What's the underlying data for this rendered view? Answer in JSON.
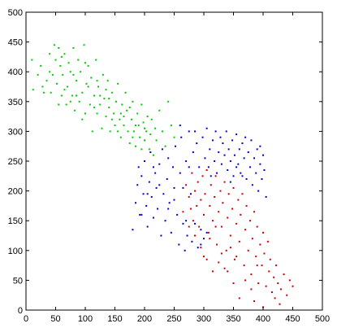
{
  "chart_data": {
    "type": "scatter",
    "title": "",
    "xlabel": "",
    "ylabel": "",
    "xlim": [
      0,
      500
    ],
    "ylim": [
      0,
      500
    ],
    "xticks": [
      0,
      50,
      100,
      150,
      200,
      250,
      300,
      350,
      400,
      450,
      500
    ],
    "yticks": [
      0,
      50,
      100,
      150,
      200,
      250,
      300,
      350,
      400,
      450,
      500
    ],
    "xtick_labels": [
      "0",
      "50",
      "100",
      "150",
      "200",
      "250",
      "300",
      "350",
      "400",
      "450",
      "500"
    ],
    "ytick_labels": [
      "0",
      "50",
      "100",
      "150",
      "200",
      "250",
      "300",
      "350",
      "400",
      "450",
      "500"
    ],
    "grid": false,
    "legend": "none",
    "marker": "dot",
    "series": [
      {
        "color": "#00cc00",
        "points": [
          [
            10,
            420
          ],
          [
            12,
            370
          ],
          [
            20,
            395
          ],
          [
            25,
            410
          ],
          [
            28,
            375
          ],
          [
            35,
            385
          ],
          [
            40,
            430
          ],
          [
            42,
            365
          ],
          [
            48,
            445
          ],
          [
            50,
            420
          ],
          [
            52,
            380
          ],
          [
            55,
            440
          ],
          [
            58,
            410
          ],
          [
            60,
            360
          ],
          [
            62,
            395
          ],
          [
            65,
            430
          ],
          [
            68,
            345
          ],
          [
            70,
            375
          ],
          [
            72,
            415
          ],
          [
            75,
            400
          ],
          [
            78,
            360
          ],
          [
            80,
            440
          ],
          [
            82,
            335
          ],
          [
            85,
            385
          ],
          [
            88,
            420
          ],
          [
            90,
            350
          ],
          [
            92,
            400
          ],
          [
            95,
            365
          ],
          [
            98,
            445
          ],
          [
            100,
            330
          ],
          [
            102,
            380
          ],
          [
            105,
            410
          ],
          [
            108,
            345
          ],
          [
            110,
            390
          ],
          [
            112,
            300
          ],
          [
            115,
            360
          ],
          [
            118,
            420
          ],
          [
            120,
            330
          ],
          [
            122,
            375
          ],
          [
            125,
            345
          ],
          [
            128,
            305
          ],
          [
            130,
            395
          ],
          [
            132,
            355
          ],
          [
            135,
            325
          ],
          [
            138,
            385
          ],
          [
            140,
            340
          ],
          [
            142,
            300
          ],
          [
            145,
            365
          ],
          [
            148,
            330
          ],
          [
            150,
            310
          ],
          [
            152,
            350
          ],
          [
            155,
            380
          ],
          [
            158,
            320
          ],
          [
            160,
            290
          ],
          [
            162,
            345
          ],
          [
            165,
            310
          ],
          [
            168,
            365
          ],
          [
            170,
            335
          ],
          [
            172,
            300
          ],
          [
            175,
            280
          ],
          [
            178,
            320
          ],
          [
            180,
            350
          ],
          [
            182,
            300
          ],
          [
            185,
            275
          ],
          [
            188,
            330
          ],
          [
            190,
            310
          ],
          [
            192,
            290
          ],
          [
            195,
            345
          ],
          [
            198,
            315
          ],
          [
            200,
            285
          ],
          [
            203,
            300
          ],
          [
            205,
            325
          ],
          [
            208,
            270
          ],
          [
            210,
            295
          ],
          [
            212,
            320
          ],
          [
            215,
            260
          ],
          [
            218,
            305
          ],
          [
            220,
            285
          ],
          [
            225,
            335
          ],
          [
            230,
            300
          ],
          [
            235,
            275
          ],
          [
            240,
            350
          ],
          [
            245,
            310
          ],
          [
            250,
            290
          ],
          [
            45,
            395
          ],
          [
            65,
            370
          ],
          [
            85,
            360
          ],
          [
            105,
            375
          ],
          [
            125,
            360
          ],
          [
            145,
            320
          ],
          [
            165,
            325
          ],
          [
            185,
            310
          ],
          [
            55,
            345
          ],
          [
            75,
            350
          ],
          [
            95,
            320
          ],
          [
            115,
            340
          ],
          [
            135,
            370
          ],
          [
            155,
            300
          ],
          [
            175,
            340
          ],
          [
            195,
            270
          ],
          [
            30,
            365
          ],
          [
            40,
            400
          ],
          [
            60,
            425
          ],
          [
            80,
            395
          ],
          [
            100,
            415
          ],
          [
            120,
            385
          ],
          [
            140,
            355
          ],
          [
            160,
            330
          ],
          [
            180,
            290
          ],
          [
            200,
            305
          ]
        ]
      },
      {
        "color": "#0000cc",
        "points": [
          [
            180,
            135
          ],
          [
            185,
            180
          ],
          [
            188,
            210
          ],
          [
            190,
            240
          ],
          [
            192,
            160
          ],
          [
            195,
            225
          ],
          [
            198,
            195
          ],
          [
            200,
            250
          ],
          [
            203,
            175
          ],
          [
            205,
            140
          ],
          [
            208,
            215
          ],
          [
            210,
            265
          ],
          [
            212,
            190
          ],
          [
            215,
            155
          ],
          [
            218,
            230
          ],
          [
            220,
            205
          ],
          [
            222,
            170
          ],
          [
            225,
            245
          ],
          [
            228,
            125
          ],
          [
            230,
            270
          ],
          [
            232,
            195
          ],
          [
            235,
            150
          ],
          [
            238,
            220
          ],
          [
            240,
            255
          ],
          [
            242,
            180
          ],
          [
            245,
            130
          ],
          [
            248,
            240
          ],
          [
            250,
            205
          ],
          [
            252,
            275
          ],
          [
            255,
            160
          ],
          [
            258,
            110
          ],
          [
            260,
            230
          ],
          [
            262,
            290
          ],
          [
            265,
            145
          ],
          [
            268,
            100
          ],
          [
            270,
            250
          ],
          [
            272,
            125
          ],
          [
            275,
            300
          ],
          [
            278,
            195
          ],
          [
            280,
            115
          ],
          [
            282,
            265
          ],
          [
            285,
            145
          ],
          [
            288,
            280
          ],
          [
            290,
            105
          ],
          [
            292,
            240
          ],
          [
            295,
            135
          ],
          [
            298,
            290
          ],
          [
            300,
            120
          ],
          [
            302,
            255
          ],
          [
            305,
            305
          ],
          [
            308,
            240
          ],
          [
            310,
            270
          ],
          [
            312,
            225
          ],
          [
            315,
            285
          ],
          [
            318,
            250
          ],
          [
            320,
            300
          ],
          [
            322,
            230
          ],
          [
            325,
            265
          ],
          [
            328,
            290
          ],
          [
            330,
            245
          ],
          [
            332,
            280
          ],
          [
            335,
            260
          ],
          [
            338,
            300
          ],
          [
            340,
            235
          ],
          [
            342,
            270
          ],
          [
            345,
            250
          ],
          [
            348,
            285
          ],
          [
            350,
            225
          ],
          [
            352,
            260
          ],
          [
            355,
            295
          ],
          [
            358,
            245
          ],
          [
            360,
            270
          ],
          [
            362,
            230
          ],
          [
            365,
            280
          ],
          [
            368,
            255
          ],
          [
            370,
            290
          ],
          [
            372,
            220
          ],
          [
            375,
            265
          ],
          [
            378,
            240
          ],
          [
            380,
            285
          ],
          [
            382,
            210
          ],
          [
            385,
            255
          ],
          [
            388,
            230
          ],
          [
            390,
            270
          ],
          [
            392,
            200
          ],
          [
            395,
            245
          ],
          [
            398,
            220
          ],
          [
            400,
            260
          ],
          [
            402,
            235
          ],
          [
            405,
            190
          ],
          [
            260,
            310
          ],
          [
            270,
            150
          ],
          [
            250,
            185
          ],
          [
            240,
            170
          ],
          [
            225,
            210
          ],
          [
            215,
            240
          ],
          [
            205,
            195
          ],
          [
            195,
            160
          ],
          [
            285,
            125
          ],
          [
            295,
            110
          ],
          [
            305,
            130
          ],
          [
            275,
            240
          ],
          [
            265,
            205
          ],
          [
            285,
            300
          ],
          [
            345,
            215
          ],
          [
            355,
            240
          ],
          [
            365,
            225
          ],
          [
            395,
            275
          ]
        ]
      },
      {
        "color": "#cc0000",
        "points": [
          [
            270,
            210
          ],
          [
            275,
            190
          ],
          [
            278,
            170
          ],
          [
            280,
            230
          ],
          [
            282,
            150
          ],
          [
            285,
            200
          ],
          [
            288,
            175
          ],
          [
            290,
            215
          ],
          [
            292,
            140
          ],
          [
            295,
            185
          ],
          [
            298,
            225
          ],
          [
            300,
            160
          ],
          [
            302,
            195
          ],
          [
            305,
            235
          ],
          [
            308,
            130
          ],
          [
            310,
            175
          ],
          [
            312,
            210
          ],
          [
            315,
            150
          ],
          [
            318,
            190
          ],
          [
            320,
            225
          ],
          [
            322,
            110
          ],
          [
            325,
            165
          ],
          [
            328,
            200
          ],
          [
            330,
            140
          ],
          [
            332,
            180
          ],
          [
            335,
            215
          ],
          [
            338,
            100
          ],
          [
            340,
            155
          ],
          [
            342,
            195
          ],
          [
            345,
            125
          ],
          [
            348,
            170
          ],
          [
            350,
            205
          ],
          [
            352,
            85
          ],
          [
            355,
            145
          ],
          [
            358,
            185
          ],
          [
            360,
            115
          ],
          [
            362,
            160
          ],
          [
            365,
            195
          ],
          [
            368,
            75
          ],
          [
            370,
            135
          ],
          [
            372,
            175
          ],
          [
            375,
            100
          ],
          [
            378,
            150
          ],
          [
            380,
            60
          ],
          [
            382,
            120
          ],
          [
            385,
            165
          ],
          [
            388,
            90
          ],
          [
            390,
            140
          ],
          [
            392,
            45
          ],
          [
            395,
            110
          ],
          [
            398,
            75
          ],
          [
            400,
            130
          ],
          [
            402,
            95
          ],
          [
            405,
            40
          ],
          [
            408,
            115
          ],
          [
            410,
            65
          ],
          [
            412,
            85
          ],
          [
            415,
            30
          ],
          [
            418,
            55
          ],
          [
            420,
            20
          ],
          [
            422,
            75
          ],
          [
            425,
            45
          ],
          [
            428,
            10
          ],
          [
            430,
            35
          ],
          [
            435,
            60
          ],
          [
            440,
            25
          ],
          [
            445,
            50
          ],
          [
            450,
            40
          ],
          [
            300,
            90
          ],
          [
            310,
            120
          ],
          [
            320,
            140
          ],
          [
            330,
            95
          ],
          [
            340,
            65
          ],
          [
            350,
            45
          ],
          [
            360,
            20
          ],
          [
            370,
            50
          ],
          [
            380,
            35
          ],
          [
            390,
            75
          ],
          [
            400,
            5
          ],
          [
            385,
            15
          ],
          [
            265,
            165
          ],
          [
            275,
            140
          ],
          [
            285,
            125
          ],
          [
            295,
            105
          ],
          [
            305,
            85
          ],
          [
            315,
            65
          ],
          [
            325,
            80
          ],
          [
            335,
            70
          ],
          [
            345,
            105
          ],
          [
            355,
            90
          ]
        ]
      }
    ]
  }
}
